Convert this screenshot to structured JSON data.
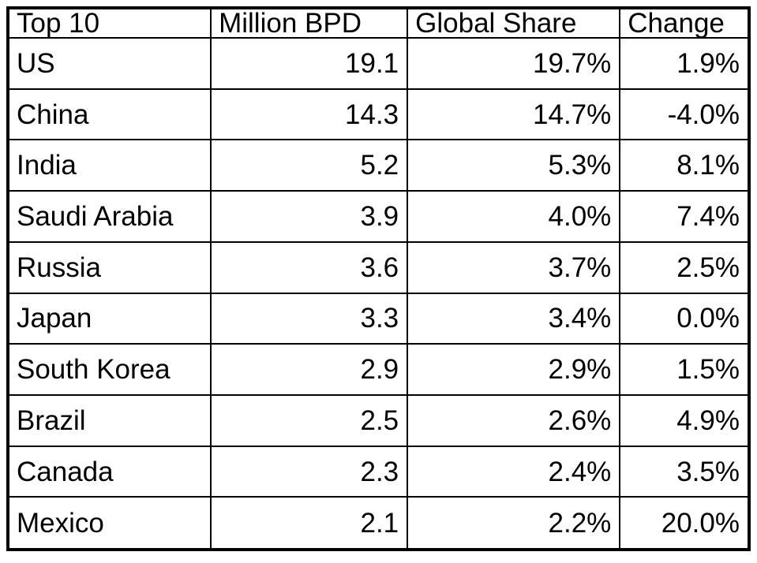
{
  "colors": {
    "background": "#ffffff",
    "border": "#000000",
    "text": "#000000"
  },
  "chart_data": {
    "type": "table",
    "title": "Top 10",
    "columns": [
      "Top 10",
      "Million BPD",
      "Global Share",
      "Change"
    ],
    "rows": [
      [
        "US",
        "19.1",
        "19.7%",
        "1.9%"
      ],
      [
        "China",
        "14.3",
        "14.7%",
        "-4.0%"
      ],
      [
        "India",
        "5.2",
        "5.3%",
        "8.1%"
      ],
      [
        "Saudi Arabia",
        "3.9",
        "4.0%",
        "7.4%"
      ],
      [
        "Russia",
        "3.6",
        "3.7%",
        "2.5%"
      ],
      [
        "Japan",
        "3.3",
        "3.4%",
        "0.0%"
      ],
      [
        "South Korea",
        "2.9",
        "2.9%",
        "1.5%"
      ],
      [
        "Brazil",
        "2.5",
        "2.6%",
        "4.9%"
      ],
      [
        "Canada",
        "2.3",
        "2.4%",
        "3.5%"
      ],
      [
        "Mexico",
        "2.1",
        "2.2%",
        "20.0%"
      ]
    ],
    "layout": {
      "grid": "on",
      "text_column_align": "left",
      "numeric_columns_align": "right",
      "outer_border": "thick",
      "inner_border": "thin"
    }
  }
}
